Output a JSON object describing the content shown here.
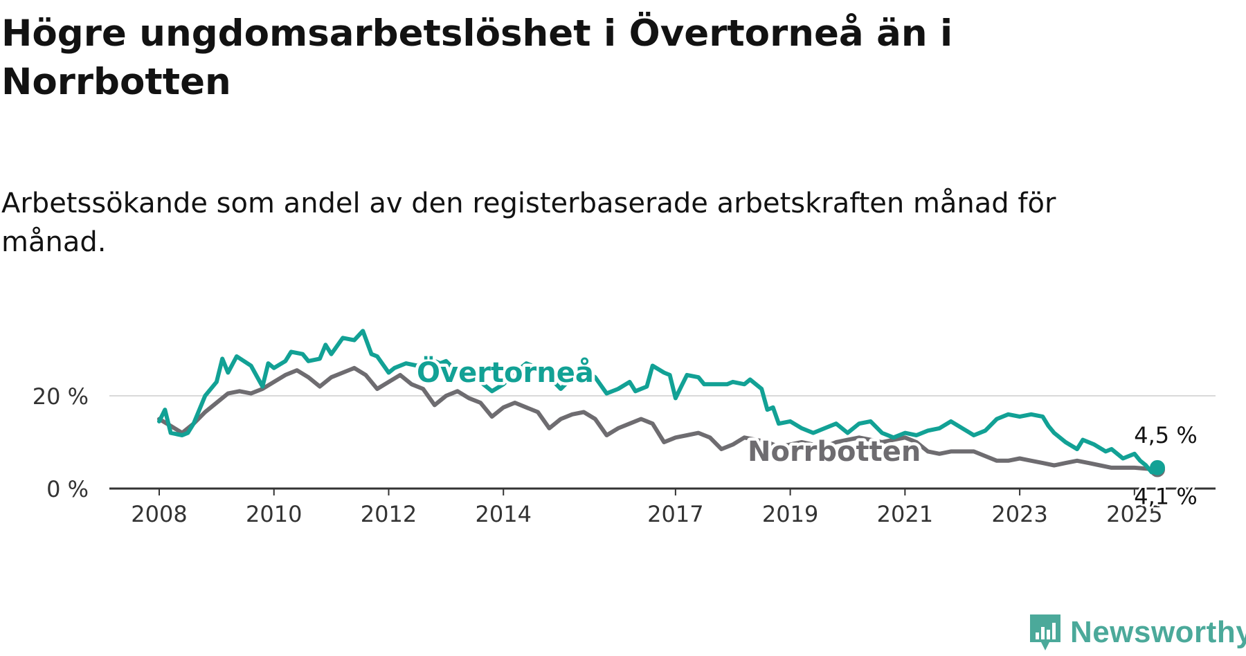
{
  "title": "Högre ungdomsarbetslöshet i Övertorneå än i Norrbotten",
  "subtitle": "Arbetssökande som andel av den registerbaserade arbetskraften månad för månad.",
  "brand": {
    "name": "Newsworthy",
    "color": "#4ba99a",
    "icon": "bar-chart-speech-bubble-icon"
  },
  "chart_data": {
    "type": "line",
    "title": "Högre ungdomsarbetslöshet i Övertorneå än i Norrbotten",
    "subtitle": "Arbetssökande som andel av den registerbaserade arbetskraften månad för månad.",
    "xlabel": "",
    "ylabel": "",
    "x_range": [
      2008.0,
      2025.4
    ],
    "ylim": [
      0,
      34
    ],
    "x_ticks": [
      "2008",
      "2010",
      "2012",
      "2014",
      "2017",
      "2019",
      "2021",
      "2023",
      "2025"
    ],
    "y_ticks": [
      {
        "value": 0,
        "label": "0 %"
      },
      {
        "value": 20,
        "label": "20 %"
      }
    ],
    "grid": "horizontal",
    "legend": "inline labels",
    "series": [
      {
        "name": "Norrbotten",
        "color": "#6e6c70",
        "end_label": "4,1 %",
        "points": [
          [
            2008.0,
            15
          ],
          [
            2008.2,
            13.5
          ],
          [
            2008.4,
            12
          ],
          [
            2008.6,
            14
          ],
          [
            2008.8,
            16.5
          ],
          [
            2009.0,
            18.5
          ],
          [
            2009.2,
            20.5
          ],
          [
            2009.4,
            21
          ],
          [
            2009.6,
            20.5
          ],
          [
            2009.8,
            21.5
          ],
          [
            2010.0,
            23
          ],
          [
            2010.2,
            24.5
          ],
          [
            2010.4,
            25.5
          ],
          [
            2010.6,
            24
          ],
          [
            2010.8,
            22
          ],
          [
            2011.0,
            24
          ],
          [
            2011.2,
            25
          ],
          [
            2011.4,
            26
          ],
          [
            2011.6,
            24.5
          ],
          [
            2011.8,
            21.5
          ],
          [
            2012.0,
            23
          ],
          [
            2012.2,
            24.5
          ],
          [
            2012.4,
            22.5
          ],
          [
            2012.6,
            21.5
          ],
          [
            2012.8,
            18
          ],
          [
            2013.0,
            20
          ],
          [
            2013.2,
            21
          ],
          [
            2013.4,
            19.5
          ],
          [
            2013.6,
            18.5
          ],
          [
            2013.8,
            15.5
          ],
          [
            2014.0,
            17.5
          ],
          [
            2014.2,
            18.5
          ],
          [
            2014.4,
            17.5
          ],
          [
            2014.6,
            16.5
          ],
          [
            2014.8,
            13
          ],
          [
            2015.0,
            15
          ],
          [
            2015.2,
            16
          ],
          [
            2015.4,
            16.5
          ],
          [
            2015.6,
            15
          ],
          [
            2015.8,
            11.5
          ],
          [
            2016.0,
            13
          ],
          [
            2016.2,
            14
          ],
          [
            2016.4,
            15
          ],
          [
            2016.6,
            14
          ],
          [
            2016.8,
            10
          ],
          [
            2017.0,
            11
          ],
          [
            2017.2,
            11.5
          ],
          [
            2017.4,
            12
          ],
          [
            2017.6,
            11
          ],
          [
            2017.8,
            8.5
          ],
          [
            2018.0,
            9.5
          ],
          [
            2018.2,
            11
          ],
          [
            2018.4,
            10.5
          ],
          [
            2018.6,
            10
          ],
          [
            2018.8,
            9
          ],
          [
            2019.0,
            9.5
          ],
          [
            2019.2,
            10
          ],
          [
            2019.4,
            9.5
          ],
          [
            2019.6,
            9
          ],
          [
            2019.8,
            10
          ],
          [
            2020.0,
            10.5
          ],
          [
            2020.2,
            11
          ],
          [
            2020.4,
            10.5
          ],
          [
            2020.6,
            10
          ],
          [
            2020.8,
            10.5
          ],
          [
            2021.0,
            11
          ],
          [
            2021.2,
            10
          ],
          [
            2021.4,
            8
          ],
          [
            2021.6,
            7.5
          ],
          [
            2021.8,
            8
          ],
          [
            2022.0,
            8
          ],
          [
            2022.2,
            8
          ],
          [
            2022.4,
            7
          ],
          [
            2022.6,
            6
          ],
          [
            2022.8,
            6
          ],
          [
            2023.0,
            6.5
          ],
          [
            2023.2,
            6
          ],
          [
            2023.4,
            5.5
          ],
          [
            2023.6,
            5
          ],
          [
            2023.8,
            5.5
          ],
          [
            2024.0,
            6
          ],
          [
            2024.2,
            5.5
          ],
          [
            2024.4,
            5
          ],
          [
            2024.6,
            4.5
          ],
          [
            2024.8,
            4.5
          ],
          [
            2025.0,
            4.5
          ],
          [
            2025.2,
            4.3
          ],
          [
            2025.4,
            4.1
          ]
        ]
      },
      {
        "name": "Övertorneå",
        "color": "#12a195",
        "end_label": "4,5 %",
        "points": [
          [
            2008.0,
            14.5
          ],
          [
            2008.1,
            17
          ],
          [
            2008.2,
            12
          ],
          [
            2008.4,
            11.5
          ],
          [
            2008.5,
            12
          ],
          [
            2008.6,
            14
          ],
          [
            2008.8,
            20
          ],
          [
            2009.0,
            23
          ],
          [
            2009.1,
            28
          ],
          [
            2009.2,
            25
          ],
          [
            2009.35,
            28.5
          ],
          [
            2009.6,
            26.5
          ],
          [
            2009.8,
            22
          ],
          [
            2009.9,
            27
          ],
          [
            2010.0,
            26
          ],
          [
            2010.2,
            27.5
          ],
          [
            2010.3,
            29.5
          ],
          [
            2010.5,
            29
          ],
          [
            2010.6,
            27.5
          ],
          [
            2010.8,
            28
          ],
          [
            2010.9,
            31
          ],
          [
            2011.0,
            29
          ],
          [
            2011.2,
            32.5
          ],
          [
            2011.4,
            32
          ],
          [
            2011.55,
            34
          ],
          [
            2011.7,
            29
          ],
          [
            2011.8,
            28.5
          ],
          [
            2012.0,
            25
          ],
          [
            2012.1,
            26
          ],
          [
            2012.3,
            27
          ],
          [
            2012.5,
            26.5
          ],
          [
            2012.7,
            28
          ],
          [
            2012.9,
            27
          ],
          [
            2013.0,
            27.5
          ],
          [
            2013.2,
            25
          ],
          [
            2013.4,
            24
          ],
          [
            2013.6,
            23
          ],
          [
            2013.8,
            21
          ],
          [
            2014.0,
            22.5
          ],
          [
            2014.2,
            25
          ],
          [
            2014.4,
            27
          ],
          [
            2014.6,
            26
          ],
          [
            2014.8,
            24
          ],
          [
            2015.0,
            21.5
          ],
          [
            2015.2,
            24
          ],
          [
            2015.4,
            25.5
          ],
          [
            2015.6,
            24
          ],
          [
            2015.8,
            20.5
          ],
          [
            2016.0,
            21.5
          ],
          [
            2016.2,
            23
          ],
          [
            2016.3,
            21
          ],
          [
            2016.5,
            22
          ],
          [
            2016.6,
            26.5
          ],
          [
            2016.8,
            25
          ],
          [
            2016.9,
            24.5
          ],
          [
            2017.0,
            19.5
          ],
          [
            2017.1,
            22
          ],
          [
            2017.2,
            24.5
          ],
          [
            2017.4,
            24
          ],
          [
            2017.5,
            22.5
          ],
          [
            2017.7,
            22.5
          ],
          [
            2017.9,
            22.5
          ],
          [
            2018.0,
            23
          ],
          [
            2018.2,
            22.5
          ],
          [
            2018.3,
            23.5
          ],
          [
            2018.5,
            21.5
          ],
          [
            2018.6,
            17
          ],
          [
            2018.7,
            17.5
          ],
          [
            2018.8,
            14
          ],
          [
            2019.0,
            14.5
          ],
          [
            2019.2,
            13
          ],
          [
            2019.4,
            12
          ],
          [
            2019.6,
            13
          ],
          [
            2019.8,
            14
          ],
          [
            2020.0,
            12
          ],
          [
            2020.2,
            14
          ],
          [
            2020.4,
            14.5
          ],
          [
            2020.6,
            12
          ],
          [
            2020.8,
            11
          ],
          [
            2021.0,
            12
          ],
          [
            2021.2,
            11.5
          ],
          [
            2021.4,
            12.5
          ],
          [
            2021.6,
            13
          ],
          [
            2021.8,
            14.5
          ],
          [
            2022.0,
            13
          ],
          [
            2022.2,
            11.5
          ],
          [
            2022.4,
            12.5
          ],
          [
            2022.6,
            15
          ],
          [
            2022.8,
            16
          ],
          [
            2023.0,
            15.5
          ],
          [
            2023.2,
            16
          ],
          [
            2023.4,
            15.5
          ],
          [
            2023.5,
            13.5
          ],
          [
            2023.6,
            12
          ],
          [
            2023.8,
            10
          ],
          [
            2024.0,
            8.5
          ],
          [
            2024.1,
            10.5
          ],
          [
            2024.3,
            9.5
          ],
          [
            2024.5,
            8
          ],
          [
            2024.6,
            8.5
          ],
          [
            2024.8,
            6.5
          ],
          [
            2025.0,
            7.5
          ],
          [
            2025.1,
            6
          ],
          [
            2025.2,
            5
          ],
          [
            2025.3,
            3.5
          ],
          [
            2025.4,
            4.5
          ]
        ]
      }
    ],
    "inline_labels": [
      {
        "series": "Övertorneå",
        "text": "Övertorneå",
        "color": "#12a195"
      },
      {
        "series": "Norrbotten",
        "text": "Norrbotten",
        "color": "#6e6c70"
      }
    ]
  }
}
